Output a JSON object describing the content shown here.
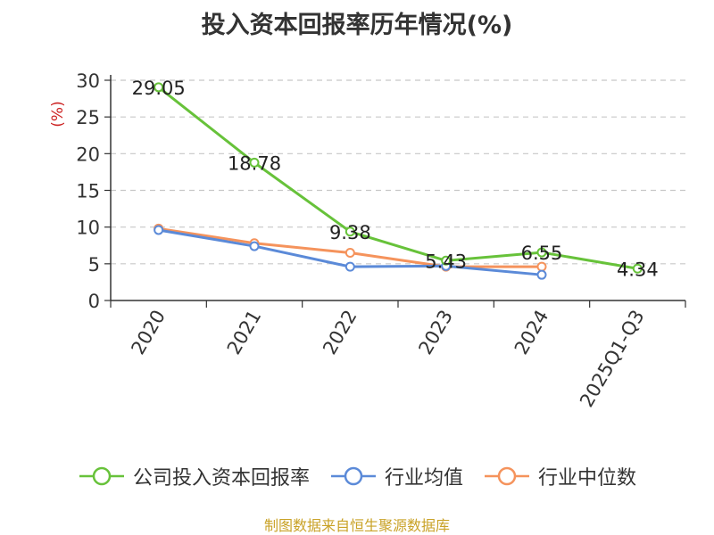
{
  "chart_data": {
    "type": "line",
    "title": "投入资本回报率历年情况(%)",
    "ylabel": "(%)",
    "categories": [
      "2020",
      "2021",
      "2022",
      "2023",
      "2024",
      "2025Q1-Q3"
    ],
    "ylim": [
      0,
      30
    ],
    "yticks": [
      0,
      5,
      10,
      15,
      20,
      25,
      30
    ],
    "grid": true,
    "legend_position": "bottom",
    "series": [
      {
        "name": "公司投入资本回报率",
        "color": "#67c23a",
        "values": [
          29.05,
          18.78,
          9.38,
          5.43,
          6.55,
          4.34
        ],
        "labels": [
          "29.05",
          "18.78",
          "9.38",
          "5.43",
          "6.55",
          "4.34"
        ]
      },
      {
        "name": "行业均值",
        "color": "#5b8ad8",
        "values": [
          9.6,
          7.4,
          4.6,
          4.7,
          3.5,
          null
        ]
      },
      {
        "name": "行业中位数",
        "color": "#f5935c",
        "values": [
          9.8,
          7.8,
          6.5,
          4.6,
          4.6,
          null
        ]
      }
    ],
    "source": "制图数据来自恒生聚源数据库"
  }
}
